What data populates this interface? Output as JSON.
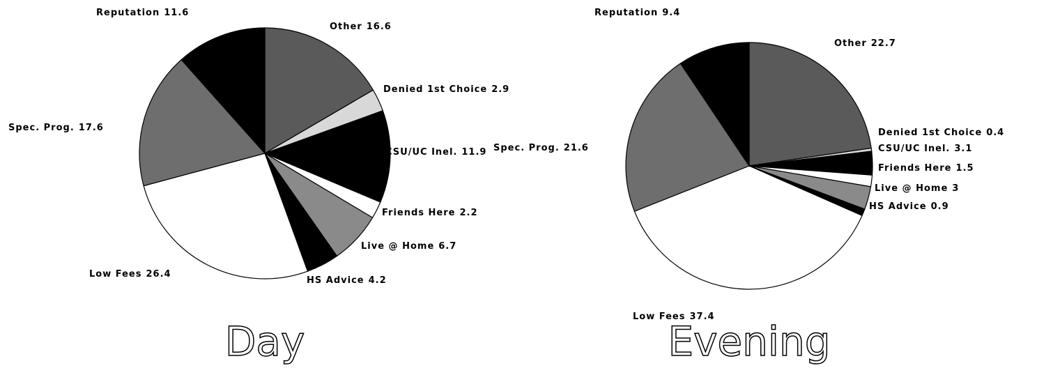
{
  "chart_data": [
    {
      "type": "pie",
      "title": "Day",
      "categories": [
        "Other",
        "Denied 1st Choice",
        "CSU/UC Inel.",
        "Friends Here",
        "Live @ Home",
        "HS Advice",
        "Low Fees",
        "Spec. Prog.",
        "Reputation"
      ],
      "values": [
        16.6,
        2.9,
        11.9,
        2.2,
        6.7,
        4.2,
        26.4,
        17.6,
        11.6
      ],
      "colors": [
        "#5a5a5a",
        "#d8d8d8",
        "#000000",
        "#ffffff",
        "#8a8a8a",
        "#000000",
        "#ffffff",
        "#6e6e6e",
        "#000000"
      ]
    },
    {
      "type": "pie",
      "title": "Evening",
      "categories": [
        "Other",
        "Denied 1st Choice",
        "CSU/UC Inel.",
        "Friends Here",
        "Live @ Home",
        "HS Advice",
        "Low Fees",
        "Spec. Prog.",
        "Reputation"
      ],
      "values": [
        22.7,
        0.4,
        3.1,
        1.5,
        3,
        0.9,
        37.4,
        21.6,
        9.4
      ],
      "colors": [
        "#5a5a5a",
        "#d8d8d8",
        "#000000",
        "#ffffff",
        "#8a8a8a",
        "#000000",
        "#ffffff",
        "#6e6e6e",
        "#000000"
      ]
    }
  ]
}
